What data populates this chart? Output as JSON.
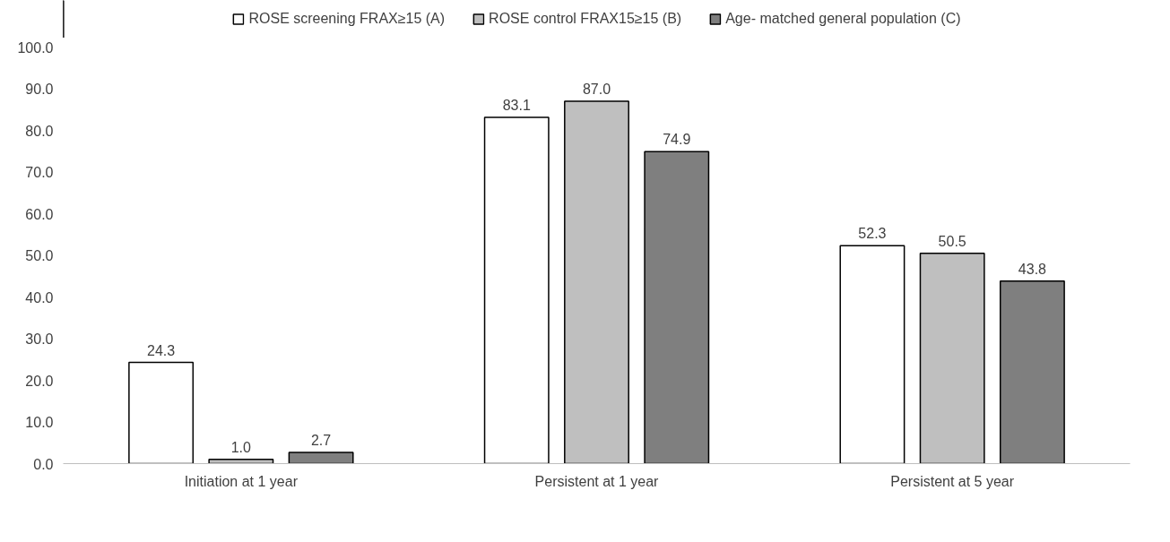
{
  "chart_data": {
    "type": "bar",
    "categories": [
      "Initiation at 1 year",
      "Persistent at 1 year",
      "Persistent at 5 year"
    ],
    "series": [
      {
        "name": "ROSE screening FRAX≥15 (A)",
        "color": "#ffffff",
        "values": [
          24.3,
          83.1,
          52.3
        ],
        "value_labels": [
          "24.3",
          "83.1",
          "52.3"
        ]
      },
      {
        "name": "ROSE control FRAX15≥15 (B)",
        "color": "#bfbfbf",
        "values": [
          1.0,
          87.0,
          50.5
        ],
        "value_labels": [
          "1.0",
          "87.0",
          "50.5"
        ]
      },
      {
        "name": "Age- matched general population (C)",
        "color": "#7f7f7f",
        "values": [
          2.7,
          74.9,
          43.8
        ],
        "value_labels": [
          "2.7",
          "74.9",
          "43.8"
        ]
      }
    ],
    "ylim": [
      0,
      100
    ],
    "yticks": [
      {
        "value": 0,
        "label": "0.0"
      },
      {
        "value": 10,
        "label": "10.0"
      },
      {
        "value": 20,
        "label": "20.0"
      },
      {
        "value": 30,
        "label": "30.0"
      },
      {
        "value": 40,
        "label": "40.0"
      },
      {
        "value": 50,
        "label": "50.0"
      },
      {
        "value": 60,
        "label": "60.0"
      },
      {
        "value": 70,
        "label": "70.0"
      },
      {
        "value": 80,
        "label": "80.0"
      },
      {
        "value": 90,
        "label": "90.0"
      },
      {
        "value": 100,
        "label": "100.0"
      }
    ],
    "grid": false,
    "legend": "top"
  }
}
